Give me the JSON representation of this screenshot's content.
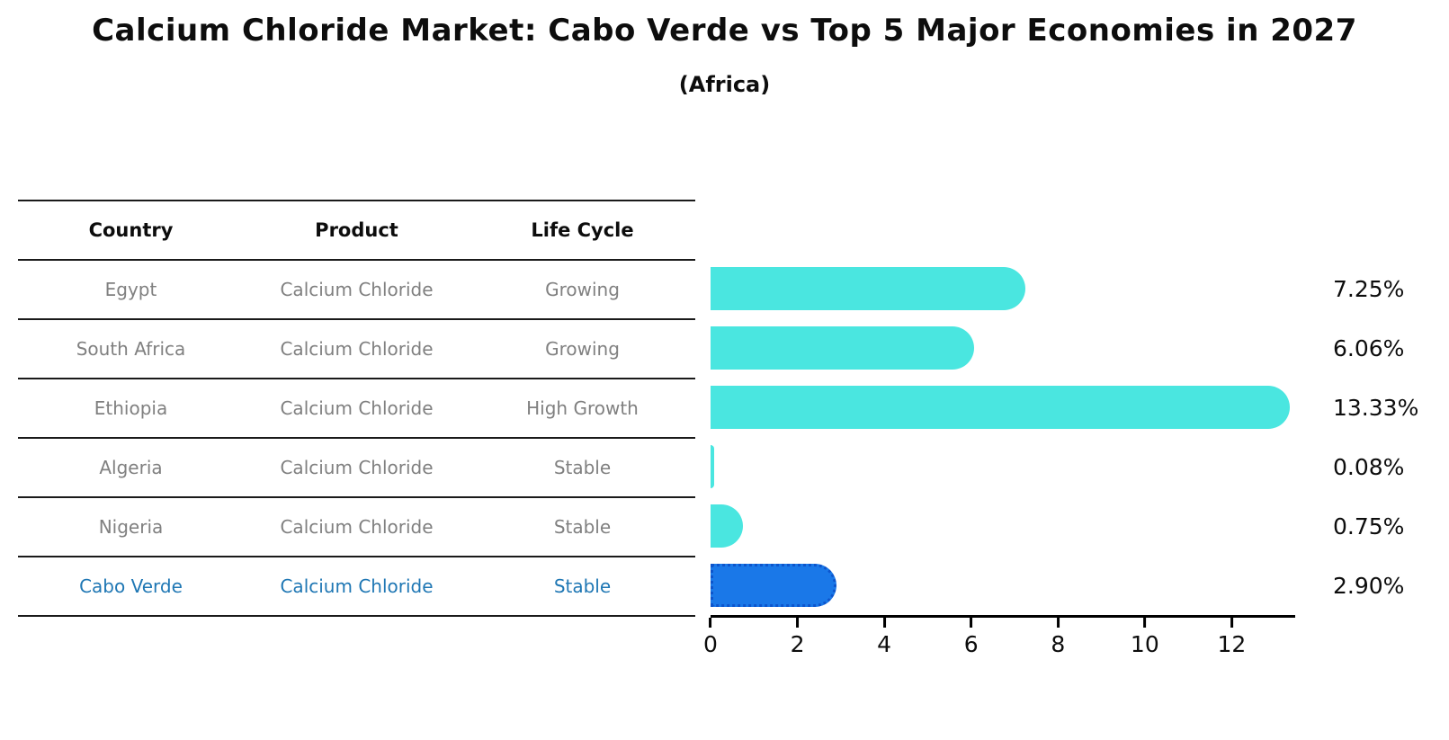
{
  "title": "Calcium Chloride Market: Cabo Verde vs Top 5 Major Economies in 2027",
  "subtitle": "(Africa)",
  "table": {
    "headers": [
      "Country",
      "Product",
      "Life Cycle"
    ],
    "rows": [
      {
        "country": "Egypt",
        "product": "Calcium Chloride",
        "life_cycle": "Growing",
        "highlight": false
      },
      {
        "country": "South Africa",
        "product": "Calcium Chloride",
        "life_cycle": "Growing",
        "highlight": false
      },
      {
        "country": "Ethiopia",
        "product": "Calcium Chloride",
        "life_cycle": "High Growth",
        "highlight": false
      },
      {
        "country": "Algeria",
        "product": "Calcium Chloride",
        "life_cycle": "Stable",
        "highlight": false
      },
      {
        "country": "Nigeria",
        "product": "Calcium Chloride",
        "life_cycle": "Stable",
        "highlight": false
      },
      {
        "country": "Cabo Verde",
        "product": "Calcium Chloride",
        "life_cycle": "Stable",
        "highlight": true
      }
    ]
  },
  "chart_data": {
    "type": "bar",
    "orientation": "horizontal",
    "title": "Calcium Chloride Market: Cabo Verde vs Top 5 Major Economies in 2027 (Africa)",
    "categories": [
      "Egypt",
      "South Africa",
      "Ethiopia",
      "Algeria",
      "Nigeria",
      "Cabo Verde"
    ],
    "values": [
      7.25,
      6.06,
      13.33,
      0.08,
      0.75,
      2.9
    ],
    "value_labels": [
      "7.25%",
      "6.06%",
      "13.33%",
      "0.08%",
      "0.75%",
      "2.90%"
    ],
    "xlim": [
      0,
      13.4
    ],
    "x_ticks": [
      0,
      2,
      4,
      6,
      8,
      10,
      12
    ],
    "grid": false,
    "legend": false,
    "bar_color": "#4ae6e0",
    "highlight_color": "#1a78e8",
    "highlight_index": 5,
    "highlight_text_color": "#1f77b4"
  }
}
